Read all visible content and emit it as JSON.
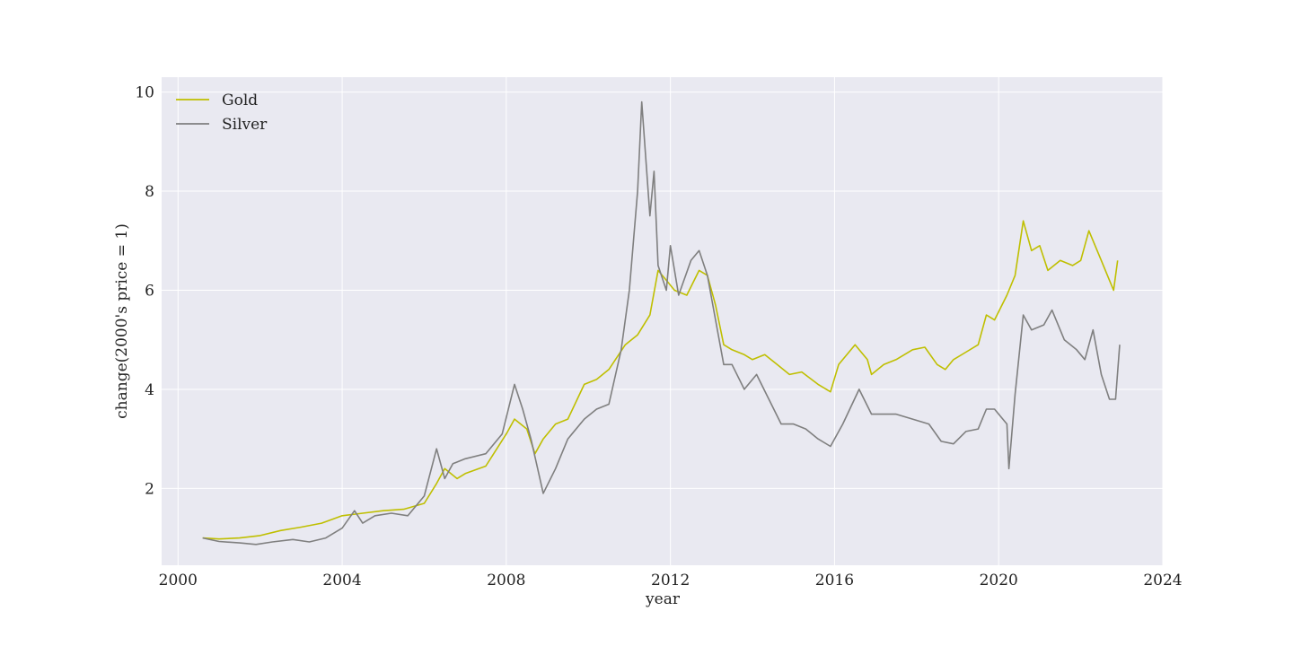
{
  "chart_data": {
    "type": "line",
    "xlabel": "year",
    "ylabel": "change(2000's price = 1)",
    "xlim": [
      1999.6,
      2024.0
    ],
    "ylim": [
      0.45,
      10.3
    ],
    "xticks": [
      2000,
      2004,
      2008,
      2012,
      2016,
      2020,
      2024
    ],
    "yticks": [
      2,
      4,
      6,
      8,
      10
    ],
    "grid": true,
    "legend_position": "top-left",
    "background": "#e9e9f1",
    "series": [
      {
        "name": "Gold",
        "color": "#bfbf00",
        "x": [
          2000.6,
          2001.0,
          2001.5,
          2002.0,
          2002.5,
          2003.0,
          2003.5,
          2004.0,
          2004.5,
          2005.0,
          2005.5,
          2006.0,
          2006.3,
          2006.5,
          2006.8,
          2007.0,
          2007.5,
          2008.0,
          2008.2,
          2008.5,
          2008.7,
          2008.9,
          2009.2,
          2009.5,
          2009.9,
          2010.2,
          2010.5,
          2010.9,
          2011.2,
          2011.5,
          2011.7,
          2011.9,
          2012.1,
          2012.4,
          2012.7,
          2012.9,
          2013.1,
          2013.3,
          2013.5,
          2013.8,
          2014.0,
          2014.3,
          2014.6,
          2014.9,
          2015.2,
          2015.6,
          2015.9,
          2016.1,
          2016.5,
          2016.8,
          2016.9,
          2017.2,
          2017.5,
          2017.9,
          2018.2,
          2018.5,
          2018.7,
          2018.9,
          2019.2,
          2019.5,
          2019.7,
          2019.9,
          2020.2,
          2020.4,
          2020.6,
          2020.8,
          2021.0,
          2021.2,
          2021.5,
          2021.8,
          2022.0,
          2022.2,
          2022.5,
          2022.7,
          2022.8,
          2022.9
        ],
        "y": [
          1.0,
          0.98,
          1.0,
          1.05,
          1.15,
          1.22,
          1.3,
          1.45,
          1.5,
          1.55,
          1.58,
          1.7,
          2.1,
          2.4,
          2.2,
          2.3,
          2.45,
          3.1,
          3.4,
          3.2,
          2.7,
          3.0,
          3.3,
          3.4,
          4.1,
          4.2,
          4.4,
          4.9,
          5.1,
          5.5,
          6.4,
          6.2,
          6.0,
          5.9,
          6.4,
          6.3,
          5.7,
          4.9,
          4.8,
          4.7,
          4.6,
          4.7,
          4.5,
          4.3,
          4.35,
          4.1,
          3.95,
          4.5,
          4.9,
          4.6,
          4.3,
          4.5,
          4.6,
          4.8,
          4.85,
          4.5,
          4.4,
          4.6,
          4.75,
          4.9,
          5.5,
          5.4,
          5.9,
          6.3,
          7.4,
          6.8,
          6.9,
          6.4,
          6.6,
          6.5,
          6.6,
          7.2,
          6.6,
          6.2,
          6.0,
          6.6
        ]
      },
      {
        "name": "Silver",
        "color": "#7f7f7f",
        "x": [
          2000.6,
          2001.0,
          2001.5,
          2001.9,
          2002.3,
          2002.8,
          2003.2,
          2003.6,
          2004.0,
          2004.3,
          2004.5,
          2004.8,
          2005.2,
          2005.6,
          2006.0,
          2006.3,
          2006.5,
          2006.7,
          2007.0,
          2007.5,
          2007.9,
          2008.2,
          2008.4,
          2008.6,
          2008.9,
          2009.2,
          2009.5,
          2009.9,
          2010.2,
          2010.5,
          2010.8,
          2011.0,
          2011.2,
          2011.3,
          2011.5,
          2011.6,
          2011.7,
          2011.9,
          2012.0,
          2012.2,
          2012.5,
          2012.7,
          2012.9,
          2013.1,
          2013.3,
          2013.5,
          2013.8,
          2014.1,
          2014.4,
          2014.7,
          2015.0,
          2015.3,
          2015.6,
          2015.9,
          2016.2,
          2016.6,
          2016.9,
          2017.2,
          2017.5,
          2017.9,
          2018.3,
          2018.6,
          2018.9,
          2019.2,
          2019.5,
          2019.7,
          2019.9,
          2020.2,
          2020.25,
          2020.4,
          2020.6,
          2020.8,
          2021.1,
          2021.3,
          2021.6,
          2021.9,
          2022.1,
          2022.3,
          2022.5,
          2022.7,
          2022.85,
          2022.95
        ],
        "y": [
          1.0,
          0.93,
          0.9,
          0.87,
          0.92,
          0.97,
          0.92,
          1.0,
          1.2,
          1.55,
          1.3,
          1.45,
          1.5,
          1.45,
          1.85,
          2.8,
          2.2,
          2.5,
          2.6,
          2.7,
          3.1,
          4.1,
          3.6,
          3.0,
          1.9,
          2.4,
          3.0,
          3.4,
          3.6,
          3.7,
          4.8,
          6.0,
          8.0,
          9.8,
          7.5,
          8.4,
          6.5,
          6.0,
          6.9,
          5.9,
          6.6,
          6.8,
          6.3,
          5.4,
          4.5,
          4.5,
          4.0,
          4.3,
          3.8,
          3.3,
          3.3,
          3.2,
          3.0,
          2.85,
          3.3,
          4.0,
          3.5,
          3.5,
          3.5,
          3.4,
          3.3,
          2.95,
          2.9,
          3.15,
          3.2,
          3.6,
          3.6,
          3.3,
          2.4,
          3.9,
          5.5,
          5.2,
          5.3,
          5.6,
          5.0,
          4.8,
          4.6,
          5.2,
          4.3,
          3.8,
          3.8,
          4.9
        ]
      }
    ]
  }
}
